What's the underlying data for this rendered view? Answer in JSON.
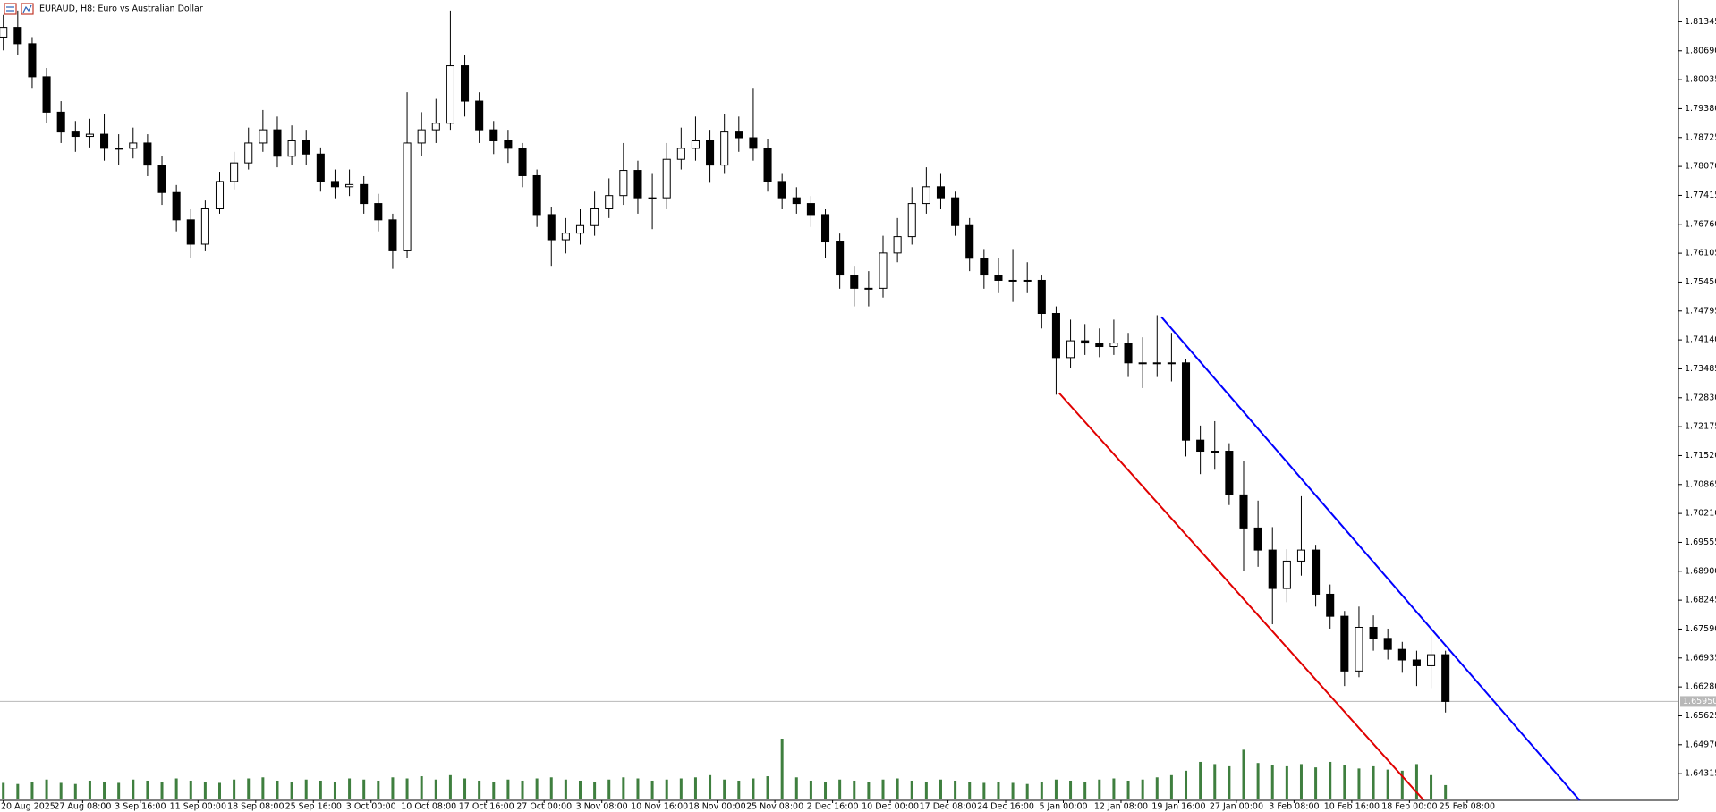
{
  "chart_data": {
    "type": "candlestick",
    "title": "EURAUD, H8:  Euro vs Australian Dollar",
    "xlim": [
      -0.23,
      116.15
    ],
    "xticks": [
      {
        "value": 0,
        "label": "20 Aug 2025"
      },
      {
        "value": 5.5,
        "label": "27 Aug 08:00"
      },
      {
        "value": 9.5,
        "label": "3 Sep 16:00"
      },
      {
        "value": 13.5,
        "label": "11 Sep 00:00"
      },
      {
        "value": 17.5,
        "label": "18 Sep 08:00"
      },
      {
        "value": 21.5,
        "label": "25 Sep 16:00"
      },
      {
        "value": 25.5,
        "label": "3 Oct 00:00"
      },
      {
        "value": 29.5,
        "label": "10 Oct 08:00"
      },
      {
        "value": 33.5,
        "label": "17 Oct 16:00"
      },
      {
        "value": 37.5,
        "label": "27 Oct 00:00"
      },
      {
        "value": 41.5,
        "label": "3 Nov 08:00"
      },
      {
        "value": 45.5,
        "label": "10 Nov 16:00"
      },
      {
        "value": 49.5,
        "label": "18 Nov 00:00"
      },
      {
        "value": 53.5,
        "label": "25 Nov 08:00"
      },
      {
        "value": 57.5,
        "label": "2 Dec 16:00"
      },
      {
        "value": 61.5,
        "label": "10 Dec 00:00"
      },
      {
        "value": 65.5,
        "label": "17 Dec 08:00"
      },
      {
        "value": 69.5,
        "label": "24 Dec 16:00"
      },
      {
        "value": 73.5,
        "label": "5 Jan 00:00"
      },
      {
        "value": 77.5,
        "label": "12 Jan 08:00"
      },
      {
        "value": 81.5,
        "label": "19 Jan 16:00"
      },
      {
        "value": 85.5,
        "label": "27 Jan 00:00"
      },
      {
        "value": 89.5,
        "label": "3 Feb 08:00"
      },
      {
        "value": 93.5,
        "label": "10 Feb 16:00"
      },
      {
        "value": 97.5,
        "label": "18 Feb 00:00"
      },
      {
        "value": 101.5,
        "label": "25 Feb 08:00"
      }
    ],
    "ylim": [
      1.6371,
      1.8184
    ],
    "yticks": [
      1.81345,
      {
        "value": 1.8069,
        "label": "1.80690"
      },
      1.80035,
      {
        "value": 1.7938,
        "label": "1.79380"
      },
      1.78725,
      {
        "value": 1.7807,
        "label": "1.78070"
      },
      1.77415,
      {
        "value": 1.7676,
        "label": "1.76760"
      },
      1.76105,
      {
        "value": 1.7545,
        "label": "1.75450"
      },
      1.74795,
      {
        "value": 1.7414,
        "label": "1.74140"
      },
      1.73485,
      {
        "value": 1.7283,
        "label": "1.72830"
      },
      1.72175,
      {
        "value": 1.7152,
        "label": "1.71520"
      },
      1.70865,
      {
        "value": 1.7021,
        "label": "1.70210"
      },
      1.69555,
      {
        "value": 1.689,
        "label": "1.68900"
      },
      1.68245,
      {
        "value": 1.6759,
        "label": "1.67590"
      },
      1.66935,
      {
        "value": 1.6628,
        "label": "1.66280"
      },
      1.65625,
      {
        "value": 1.6497,
        "label": "1.64970"
      },
      1.64315
    ],
    "bid_line": {
      "value": 1.6595,
      "label": "1.65950"
    },
    "bull_color": "#ffffff",
    "bear_color": "#000000",
    "volume_color": "#3f7f3f",
    "open": [
      1.81,
      1.8122,
      1.8085,
      1.801,
      1.793,
      1.7885,
      1.7875,
      1.788,
      1.7848,
      1.7848,
      1.786,
      1.781,
      1.7748,
      1.7686,
      1.7631,
      1.7711,
      1.7773,
      1.7815,
      1.786,
      1.789,
      1.783,
      1.7865,
      1.7835,
      1.7773,
      1.7761,
      1.7766,
      1.7723,
      1.7686,
      1.7616,
      1.786,
      1.789,
      1.7905,
      1.8035,
      1.7955,
      1.789,
      1.7865,
      1.7848,
      1.7786,
      1.7698,
      1.7641,
      1.7656,
      1.7673,
      1.7711,
      1.7741,
      1.7798,
      1.7736,
      1.7736,
      1.7823,
      1.7848,
      1.7865,
      1.781,
      1.7885,
      1.7872,
      1.7848,
      1.7773,
      1.7736,
      1.7723,
      1.7698,
      1.7636,
      1.7561,
      1.7531,
      1.7531,
      1.7611,
      1.7648,
      1.7723,
      1.7761,
      1.7736,
      1.7673,
      1.7599,
      1.7561,
      1.7549,
      1.7549,
      1.7549,
      1.7474,
      1.7374,
      1.7412,
      1.7407,
      1.7399,
      1.7407,
      1.7362,
      1.7362,
      1.7362,
      1.7362,
      1.7187,
      1.7162,
      1.7162,
      1.7063,
      1.6988,
      1.6938,
      1.6851,
      1.6913,
      1.6938,
      1.6838,
      1.6788,
      1.6664,
      1.6763,
      1.6738,
      1.6713,
      1.6689,
      1.6676,
      1.6701
    ],
    "high": [
      1.815,
      1.816,
      1.81,
      1.803,
      1.7955,
      1.791,
      1.7915,
      1.7925,
      1.788,
      1.7895,
      1.788,
      1.783,
      1.7765,
      1.771,
      1.773,
      1.7795,
      1.784,
      1.7895,
      1.7935,
      1.792,
      1.79,
      1.789,
      1.785,
      1.78,
      1.78,
      1.7785,
      1.7745,
      1.77,
      1.7975,
      1.793,
      1.796,
      1.816,
      1.806,
      1.7975,
      1.791,
      1.789,
      1.786,
      1.78,
      1.7715,
      1.769,
      1.771,
      1.775,
      1.778,
      1.786,
      1.782,
      1.779,
      1.786,
      1.7895,
      1.792,
      1.789,
      1.7925,
      1.792,
      1.7985,
      1.787,
      1.779,
      1.776,
      1.774,
      1.771,
      1.7655,
      1.758,
      1.757,
      1.765,
      1.769,
      1.776,
      1.7805,
      1.779,
      1.775,
      1.769,
      1.762,
      1.76,
      1.762,
      1.759,
      1.756,
      1.749,
      1.746,
      1.745,
      1.744,
      1.746,
      1.743,
      1.742,
      1.747,
      1.743,
      1.737,
      1.722,
      1.723,
      1.718,
      1.714,
      1.705,
      1.699,
      1.694,
      1.706,
      1.695,
      1.686,
      1.68,
      1.681,
      1.679,
      1.676,
      1.673,
      1.671,
      1.6745,
      1.671
    ],
    "low": [
      1.807,
      1.806,
      1.7985,
      1.7905,
      1.786,
      1.784,
      1.785,
      1.782,
      1.781,
      1.7825,
      1.7785,
      1.772,
      1.766,
      1.76,
      1.7615,
      1.77,
      1.7755,
      1.78,
      1.784,
      1.7805,
      1.781,
      1.781,
      1.775,
      1.7735,
      1.774,
      1.77,
      1.766,
      1.7575,
      1.76,
      1.783,
      1.786,
      1.789,
      1.792,
      1.786,
      1.7835,
      1.7815,
      1.776,
      1.767,
      1.758,
      1.761,
      1.763,
      1.765,
      1.769,
      1.772,
      1.77,
      1.7665,
      1.771,
      1.78,
      1.782,
      1.777,
      1.779,
      1.784,
      1.782,
      1.775,
      1.771,
      1.77,
      1.767,
      1.76,
      1.753,
      1.749,
      1.749,
      1.751,
      1.759,
      1.763,
      1.77,
      1.771,
      1.765,
      1.757,
      1.753,
      1.752,
      1.75,
      1.752,
      1.744,
      1.729,
      1.735,
      1.738,
      1.7375,
      1.738,
      1.733,
      1.7305,
      1.733,
      1.732,
      1.715,
      1.711,
      1.712,
      1.704,
      1.689,
      1.69,
      1.677,
      1.682,
      1.688,
      1.681,
      1.676,
      1.663,
      1.665,
      1.671,
      1.669,
      1.666,
      1.663,
      1.6625,
      1.657
    ],
    "close": [
      1.8122,
      1.8085,
      1.801,
      1.793,
      1.7885,
      1.7875,
      1.788,
      1.7848,
      1.7848,
      1.786,
      1.781,
      1.7748,
      1.7686,
      1.7631,
      1.7711,
      1.7773,
      1.7815,
      1.786,
      1.789,
      1.783,
      1.7865,
      1.7835,
      1.7773,
      1.7761,
      1.7766,
      1.7723,
      1.7686,
      1.7616,
      1.786,
      1.789,
      1.7905,
      1.8035,
      1.7955,
      1.789,
      1.7865,
      1.7848,
      1.7786,
      1.7698,
      1.7641,
      1.7656,
      1.7673,
      1.7711,
      1.7741,
      1.7798,
      1.7736,
      1.7736,
      1.7823,
      1.7848,
      1.7865,
      1.781,
      1.7885,
      1.7872,
      1.7848,
      1.7773,
      1.7736,
      1.7723,
      1.7698,
      1.7636,
      1.7561,
      1.7531,
      1.7531,
      1.7611,
      1.7648,
      1.7723,
      1.7761,
      1.7736,
      1.7673,
      1.7599,
      1.7561,
      1.7549,
      1.7549,
      1.7549,
      1.7474,
      1.7374,
      1.7412,
      1.7407,
      1.7399,
      1.7407,
      1.7362,
      1.7362,
      1.7362,
      1.7362,
      1.7187,
      1.7162,
      1.7162,
      1.7063,
      1.6988,
      1.6938,
      1.6851,
      1.6913,
      1.6938,
      1.6838,
      1.6788,
      1.6664,
      1.6763,
      1.6738,
      1.6713,
      1.6689,
      1.6676,
      1.6701,
      1.6595
    ],
    "volume": [
      1500,
      1400,
      1600,
      1800,
      1500,
      1400,
      1700,
      1600,
      1500,
      1800,
      1700,
      1600,
      1900,
      1700,
      1600,
      1500,
      1800,
      1900,
      2000,
      1700,
      1600,
      1800,
      1700,
      1600,
      1900,
      1800,
      1700,
      2000,
      1900,
      2100,
      1800,
      2200,
      1900,
      1700,
      1600,
      1800,
      1700,
      1900,
      2000,
      1800,
      1700,
      1600,
      1800,
      2000,
      1900,
      1700,
      1800,
      1900,
      2000,
      2200,
      1800,
      1700,
      1900,
      2100,
      5500,
      2000,
      1700,
      1600,
      1800,
      1700,
      1600,
      1800,
      1900,
      1700,
      1600,
      1800,
      1700,
      1600,
      1500,
      1600,
      1500,
      1400,
      1600,
      1800,
      1700,
      1600,
      1800,
      1900,
      1700,
      1800,
      2000,
      2200,
      2600,
      3400,
      3200,
      3000,
      4500,
      3300,
      3100,
      3000,
      3200,
      2900,
      3400,
      3100,
      2800,
      3000,
      2700,
      2600,
      3200,
      2200,
      1300
    ],
    "trendlines": [
      {
        "color": "#0000ff",
        "x": [
          80.3,
          109.3
        ],
        "y": [
          1.7466,
          1.6371
        ]
      },
      {
        "color": "#e00000",
        "x": [
          73.2,
          98.5
        ],
        "y": [
          1.7294,
          1.6371
        ]
      }
    ]
  }
}
